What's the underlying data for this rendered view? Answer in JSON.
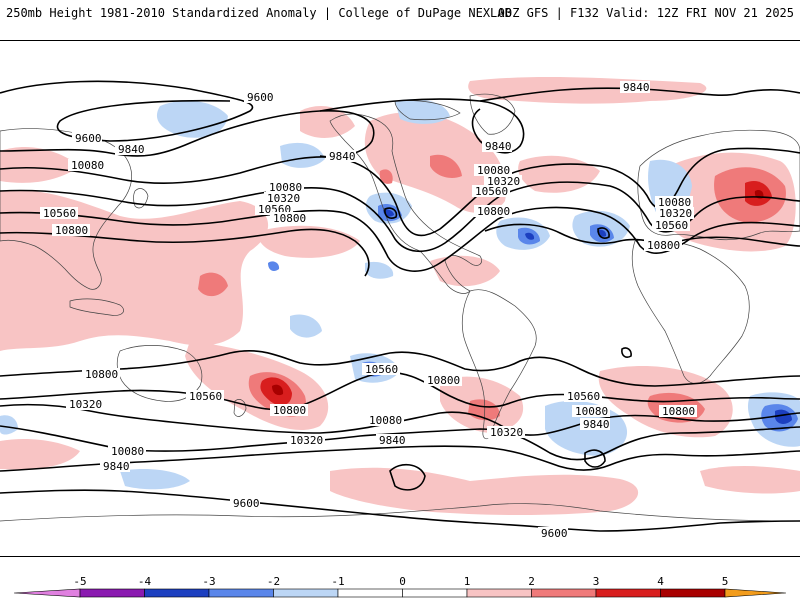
{
  "header": {
    "title": "250mb Height 1981-2010 Standardized Anomaly | College of DuPage NEXLAB",
    "run_info": "00Z GFS | F132 Valid: 12Z FRI NOV 21 2025"
  },
  "colors": {
    "neg5": "#e080e0",
    "neg4": "#8a1ab0",
    "neg3": "#1c3fc0",
    "neg2": "#5a86ea",
    "neg1": "#bcd6f5",
    "zero": "#ffffff",
    "pos1": "#f8c4c4",
    "pos2": "#ef7a7a",
    "pos3": "#d81e1e",
    "pos4": "#a80000",
    "pos5": "#f29c1c"
  },
  "colorbar": {
    "ticks": [
      "-5",
      "-4",
      "-3",
      "-2",
      "-1",
      "0",
      "1",
      "2",
      "3",
      "4",
      "5"
    ]
  },
  "contour_labels": [
    {
      "text": "9600",
      "name": "contour-label-9600-nw"
    },
    {
      "text": "9600",
      "name": "contour-label-9600-nw2"
    },
    {
      "text": "9840",
      "name": "contour-label-9840-nw"
    },
    {
      "text": "10080",
      "name": "contour-label-10080-nw"
    },
    {
      "text": "10560",
      "name": "contour-label-10560-w"
    },
    {
      "text": "10800",
      "name": "contour-label-10800-w"
    },
    {
      "text": "10080",
      "name": "contour-label-10080-pac"
    },
    {
      "text": "10320",
      "name": "contour-label-10320-pac"
    },
    {
      "text": "10560",
      "name": "contour-label-10560-pac"
    },
    {
      "text": "10800",
      "name": "contour-label-10800-pac"
    },
    {
      "text": "9840",
      "name": "contour-label-9840-pac"
    },
    {
      "text": "9840",
      "name": "contour-label-9840-can"
    },
    {
      "text": "10080",
      "name": "contour-label-10080-us"
    },
    {
      "text": "10320",
      "name": "contour-label-10320-us"
    },
    {
      "text": "10560",
      "name": "contour-label-10560-us"
    },
    {
      "text": "10800",
      "name": "contour-label-10800-us"
    },
    {
      "text": "9840",
      "name": "contour-label-9840-atl"
    },
    {
      "text": "10080",
      "name": "contour-label-10080-eu"
    },
    {
      "text": "10320",
      "name": "contour-label-10320-eu"
    },
    {
      "text": "10560",
      "name": "contour-label-10560-eu"
    },
    {
      "text": "10800",
      "name": "contour-label-10800-eu"
    },
    {
      "text": "10800",
      "name": "contour-label-10800-sw"
    },
    {
      "text": "10320",
      "name": "contour-label-10320-sw"
    },
    {
      "text": "10560",
      "name": "contour-label-10560-sp"
    },
    {
      "text": "10800",
      "name": "contour-label-10800-sp"
    },
    {
      "text": "10320",
      "name": "contour-label-10320-sp"
    },
    {
      "text": "10080",
      "name": "contour-label-10080-sw"
    },
    {
      "text": "9840",
      "name": "contour-label-9840-sw"
    },
    {
      "text": "10560",
      "name": "contour-label-10560-ep"
    },
    {
      "text": "10800",
      "name": "contour-label-10800-ep"
    },
    {
      "text": "10080",
      "name": "contour-label-10080-ep"
    },
    {
      "text": "9840",
      "name": "contour-label-9840-ep"
    },
    {
      "text": "10320",
      "name": "contour-label-10320-sa"
    },
    {
      "text": "10560",
      "name": "contour-label-10560-satl"
    },
    {
      "text": "10080",
      "name": "contour-label-10080-satl"
    },
    {
      "text": "9840",
      "name": "contour-label-9840-satl"
    },
    {
      "text": "10800",
      "name": "contour-label-10800-io"
    },
    {
      "text": "9600",
      "name": "contour-label-9600-s1"
    },
    {
      "text": "9600",
      "name": "contour-label-9600-s2"
    }
  ]
}
